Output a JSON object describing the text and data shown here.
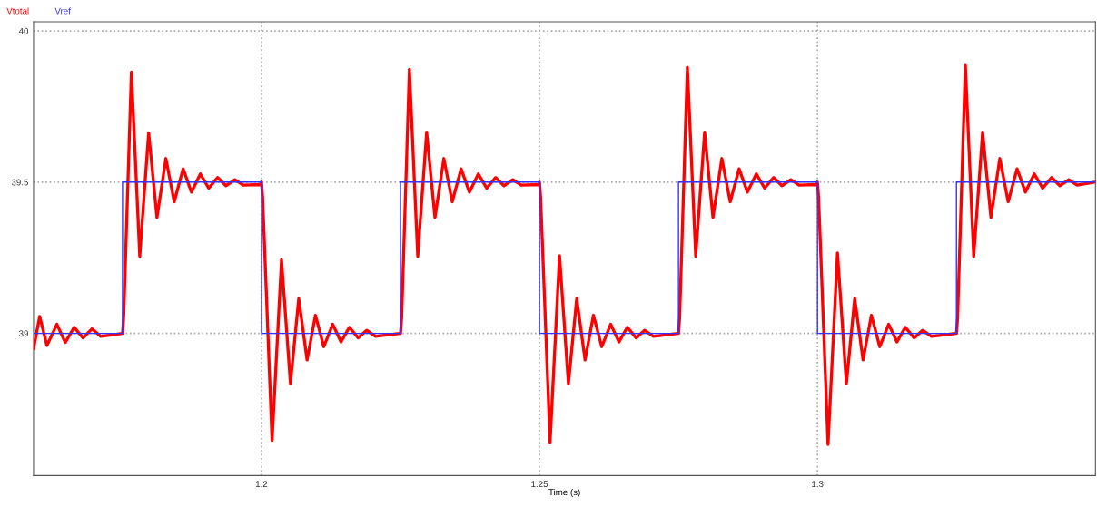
{
  "chart_data": {
    "type": "line",
    "xlabel": "Time (s)",
    "xlim": [
      1.159,
      1.35
    ],
    "ylim": [
      38.53,
      40.03
    ],
    "xticks": [
      1.2,
      1.25,
      1.3
    ],
    "yticks": [
      39,
      39.5,
      40
    ],
    "grid": true,
    "legend": "top left",
    "line_style": "solid",
    "marker": "none",
    "series": [
      {
        "name": "Vtotal",
        "color": "#ff0000",
        "x": [
          1.159,
          1.1601,
          1.1614,
          1.1632,
          1.1647,
          1.1663,
          1.1679,
          1.1695,
          1.1711,
          1.175,
          1.1752,
          1.1766,
          1.1781,
          1.1797,
          1.1812,
          1.1828,
          1.1843,
          1.1859,
          1.1874,
          1.189,
          1.1905,
          1.1921,
          1.1936,
          1.1952,
          1.1967,
          1.1999,
          1.2,
          1.2002,
          1.2019,
          1.2036,
          1.2052,
          1.2067,
          1.2082,
          1.2097,
          1.2112,
          1.2128,
          1.2143,
          1.2158,
          1.2174,
          1.2189,
          1.2205,
          1.2249,
          1.225,
          1.2252,
          1.2266,
          1.2281,
          1.2297,
          1.2312,
          1.2328,
          1.2343,
          1.2359,
          1.2374,
          1.239,
          1.2405,
          1.2421,
          1.2436,
          1.2452,
          1.2467,
          1.2499,
          1.25,
          1.2502,
          1.2519,
          1.2536,
          1.2552,
          1.2567,
          1.2582,
          1.2597,
          1.2612,
          1.2628,
          1.2643,
          1.2658,
          1.2674,
          1.2689,
          1.2705,
          1.2749,
          1.275,
          1.2752,
          1.2766,
          1.2781,
          1.2797,
          1.2812,
          1.2828,
          1.2843,
          1.2859,
          1.2874,
          1.289,
          1.2905,
          1.2921,
          1.2936,
          1.2952,
          1.2967,
          1.2999,
          1.3,
          1.3002,
          1.3019,
          1.3036,
          1.3052,
          1.3067,
          1.3082,
          1.3097,
          1.3112,
          1.3128,
          1.3143,
          1.3158,
          1.3174,
          1.3189,
          1.3205,
          1.3249,
          1.325,
          1.3252,
          1.3266,
          1.3281,
          1.3297,
          1.3312,
          1.3328,
          1.3343,
          1.3359,
          1.3374,
          1.339,
          1.3405,
          1.3421,
          1.3436,
          1.3452,
          1.3467,
          1.3499
        ],
        "values": [
          38.95,
          39.056,
          38.96,
          39.03,
          38.97,
          39.02,
          38.985,
          39.015,
          38.99,
          39.0,
          39.05,
          39.864,
          39.255,
          39.663,
          39.383,
          39.578,
          39.435,
          39.544,
          39.467,
          39.527,
          39.48,
          39.515,
          39.488,
          39.508,
          39.49,
          39.492,
          39.5,
          39.45,
          38.646,
          39.243,
          38.834,
          39.115,
          38.912,
          39.06,
          38.956,
          39.03,
          38.972,
          39.02,
          38.985,
          39.01,
          38.99,
          39.0,
          39.0,
          39.05,
          39.873,
          39.255,
          39.665,
          39.383,
          39.578,
          39.435,
          39.544,
          39.467,
          39.527,
          39.48,
          39.515,
          39.488,
          39.508,
          39.49,
          39.492,
          39.5,
          39.45,
          38.64,
          39.257,
          38.834,
          39.115,
          38.912,
          39.06,
          38.956,
          39.03,
          38.972,
          39.02,
          38.985,
          39.01,
          38.99,
          39.0,
          39.0,
          39.05,
          39.88,
          39.255,
          39.665,
          39.383,
          39.578,
          39.435,
          39.544,
          39.467,
          39.527,
          39.48,
          39.515,
          39.488,
          39.508,
          39.49,
          39.492,
          39.5,
          39.45,
          38.633,
          39.266,
          38.834,
          39.115,
          38.912,
          39.06,
          38.956,
          39.03,
          38.972,
          39.02,
          38.985,
          39.01,
          38.99,
          39.0,
          39.0,
          39.05,
          39.886,
          39.255,
          39.665,
          39.383,
          39.578,
          39.435,
          39.544,
          39.467,
          39.527,
          39.48,
          39.515,
          39.488,
          39.508,
          39.49,
          39.5
        ]
      },
      {
        "name": "Vref",
        "color": "#3333ff",
        "x": [
          1.159,
          1.175,
          1.175,
          1.2,
          1.2,
          1.225,
          1.225,
          1.25,
          1.25,
          1.275,
          1.275,
          1.3,
          1.3,
          1.325,
          1.325,
          1.35
        ],
        "values": [
          39,
          39,
          39.5,
          39.5,
          39,
          39,
          39.5,
          39.5,
          39,
          39,
          39.5,
          39.5,
          39,
          39,
          39.5,
          39.5
        ]
      }
    ]
  }
}
